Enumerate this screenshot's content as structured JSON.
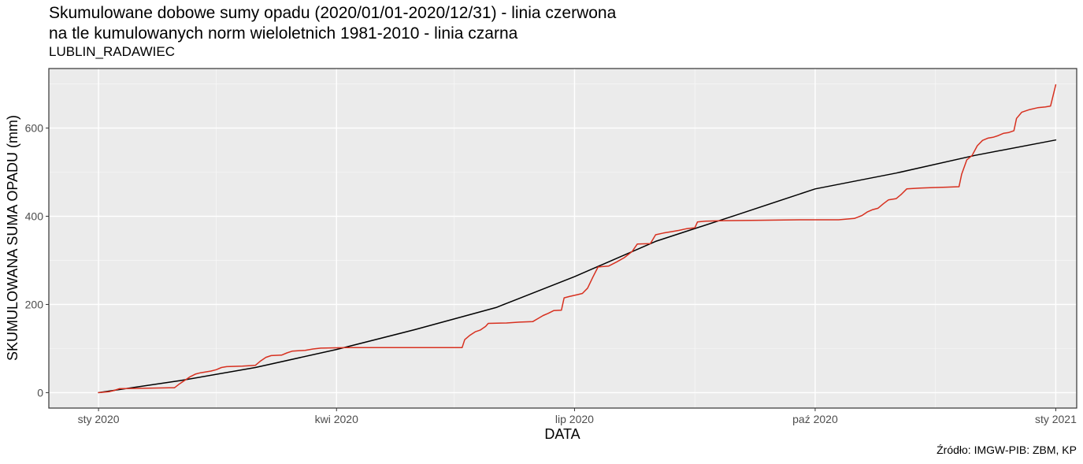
{
  "chart_data": {
    "type": "line",
    "title_line1": "Skumulowane dobowe sumy opadu (2020/01/01-2020/12/31) - linia czerwona",
    "title_line2": "na tle kumulowanych norm wieloletnich 1981-2010 - linia czarna",
    "subtitle": "LUBLIN_RADAWIEC",
    "xlabel": "DATA",
    "ylabel": "SKUMULOWANA SUMA OPADU (mm)",
    "xlim": [
      "2019-12-13",
      "2021-01-09"
    ],
    "ylim": [
      -35,
      735
    ],
    "x_ticks": [
      {
        "date": "2020-01-01",
        "label": "sty 2020"
      },
      {
        "date": "2020-04-01",
        "label": "kwi 2020"
      },
      {
        "date": "2020-07-01",
        "label": "lip 2020"
      },
      {
        "date": "2020-10-01",
        "label": "paź 2020"
      },
      {
        "date": "2021-01-01",
        "label": "sty 2021"
      }
    ],
    "x_minor_ticks": [
      "2020-02-15",
      "2020-05-16",
      "2020-08-16",
      "2020-11-16"
    ],
    "y_ticks": [
      0,
      200,
      400,
      600
    ],
    "y_minor_ticks": [
      100,
      300,
      500,
      700
    ],
    "grid": true,
    "background": "#ebebeb",
    "series": [
      {
        "color": "#d7301f",
        "points": [
          [
            "2020-01-01",
            0
          ],
          [
            "2020-01-05",
            2
          ],
          [
            "2020-01-07",
            5
          ],
          [
            "2020-01-09",
            9
          ],
          [
            "2020-01-20",
            10
          ],
          [
            "2020-01-28",
            11
          ],
          [
            "2020-01-30",
            11
          ],
          [
            "2020-02-01",
            20
          ],
          [
            "2020-02-03",
            28
          ],
          [
            "2020-02-05",
            36
          ],
          [
            "2020-02-07",
            42
          ],
          [
            "2020-02-09",
            45
          ],
          [
            "2020-02-11",
            47
          ],
          [
            "2020-02-13",
            49
          ],
          [
            "2020-02-15",
            52
          ],
          [
            "2020-02-17",
            57
          ],
          [
            "2020-02-19",
            59
          ],
          [
            "2020-02-25",
            60
          ],
          [
            "2020-03-01",
            62
          ],
          [
            "2020-03-03",
            72
          ],
          [
            "2020-03-05",
            80
          ],
          [
            "2020-03-07",
            84
          ],
          [
            "2020-03-11",
            85
          ],
          [
            "2020-03-13",
            90
          ],
          [
            "2020-03-15",
            94
          ],
          [
            "2020-03-20",
            96
          ],
          [
            "2020-03-23",
            99
          ],
          [
            "2020-03-26",
            101
          ],
          [
            "2020-04-05",
            102
          ],
          [
            "2020-04-25",
            102
          ],
          [
            "2020-05-10",
            102
          ],
          [
            "2020-05-19",
            102
          ],
          [
            "2020-05-20",
            120
          ],
          [
            "2020-05-22",
            130
          ],
          [
            "2020-05-24",
            138
          ],
          [
            "2020-05-26",
            142
          ],
          [
            "2020-05-28",
            150
          ],
          [
            "2020-05-29",
            157
          ],
          [
            "2020-06-05",
            158
          ],
          [
            "2020-06-10",
            160
          ],
          [
            "2020-06-15",
            161
          ],
          [
            "2020-06-17",
            168
          ],
          [
            "2020-06-19",
            175
          ],
          [
            "2020-06-21",
            180
          ],
          [
            "2020-06-23",
            186
          ],
          [
            "2020-06-26",
            187
          ],
          [
            "2020-06-27",
            215
          ],
          [
            "2020-06-29",
            218
          ],
          [
            "2020-07-02",
            222
          ],
          [
            "2020-07-04",
            225
          ],
          [
            "2020-07-06",
            237
          ],
          [
            "2020-07-08",
            262
          ],
          [
            "2020-07-10",
            285
          ],
          [
            "2020-07-14",
            287
          ],
          [
            "2020-07-17",
            296
          ],
          [
            "2020-07-20",
            306
          ],
          [
            "2020-07-23",
            320
          ],
          [
            "2020-07-25",
            337
          ],
          [
            "2020-07-30",
            338
          ],
          [
            "2020-08-01",
            358
          ],
          [
            "2020-08-04",
            362
          ],
          [
            "2020-08-07",
            365
          ],
          [
            "2020-08-10",
            368
          ],
          [
            "2020-08-13",
            372
          ],
          [
            "2020-08-16",
            374
          ],
          [
            "2020-08-17",
            387
          ],
          [
            "2020-08-20",
            389
          ],
          [
            "2020-08-27",
            390
          ],
          [
            "2020-09-10",
            391
          ],
          [
            "2020-09-25",
            392
          ],
          [
            "2020-10-10",
            392
          ],
          [
            "2020-10-16",
            395
          ],
          [
            "2020-10-19",
            402
          ],
          [
            "2020-10-21",
            410
          ],
          [
            "2020-10-23",
            415
          ],
          [
            "2020-10-25",
            418
          ],
          [
            "2020-10-27",
            428
          ],
          [
            "2020-10-29",
            437
          ],
          [
            "2020-11-01",
            440
          ],
          [
            "2020-11-03",
            450
          ],
          [
            "2020-11-05",
            462
          ],
          [
            "2020-11-10",
            464
          ],
          [
            "2020-11-15",
            465
          ],
          [
            "2020-11-20",
            466
          ],
          [
            "2020-11-25",
            467
          ],
          [
            "2020-11-26",
            495
          ],
          [
            "2020-11-28",
            528
          ],
          [
            "2020-11-30",
            538
          ],
          [
            "2020-12-02",
            560
          ],
          [
            "2020-12-04",
            572
          ],
          [
            "2020-12-06",
            577
          ],
          [
            "2020-12-08",
            579
          ],
          [
            "2020-12-10",
            583
          ],
          [
            "2020-12-12",
            588
          ],
          [
            "2020-12-14",
            590
          ],
          [
            "2020-12-16",
            594
          ],
          [
            "2020-12-17",
            622
          ],
          [
            "2020-12-19",
            636
          ],
          [
            "2020-12-22",
            642
          ],
          [
            "2020-12-25",
            646
          ],
          [
            "2020-12-28",
            648
          ],
          [
            "2020-12-30",
            650
          ],
          [
            "2021-01-01",
            698
          ]
        ]
      },
      {
        "color": "#000000",
        "points": [
          [
            "2020-01-01",
            0
          ],
          [
            "2020-02-01",
            27
          ],
          [
            "2020-03-01",
            57
          ],
          [
            "2020-04-01",
            98
          ],
          [
            "2020-05-01",
            143
          ],
          [
            "2020-06-01",
            193
          ],
          [
            "2020-07-01",
            263
          ],
          [
            "2020-08-01",
            343
          ],
          [
            "2020-09-01",
            403
          ],
          [
            "2020-10-01",
            462
          ],
          [
            "2020-11-01",
            498
          ],
          [
            "2020-12-01",
            538
          ],
          [
            "2021-01-01",
            573
          ]
        ]
      }
    ]
  },
  "source": "Źródło: IMGW-PIB: ZBM, KP"
}
